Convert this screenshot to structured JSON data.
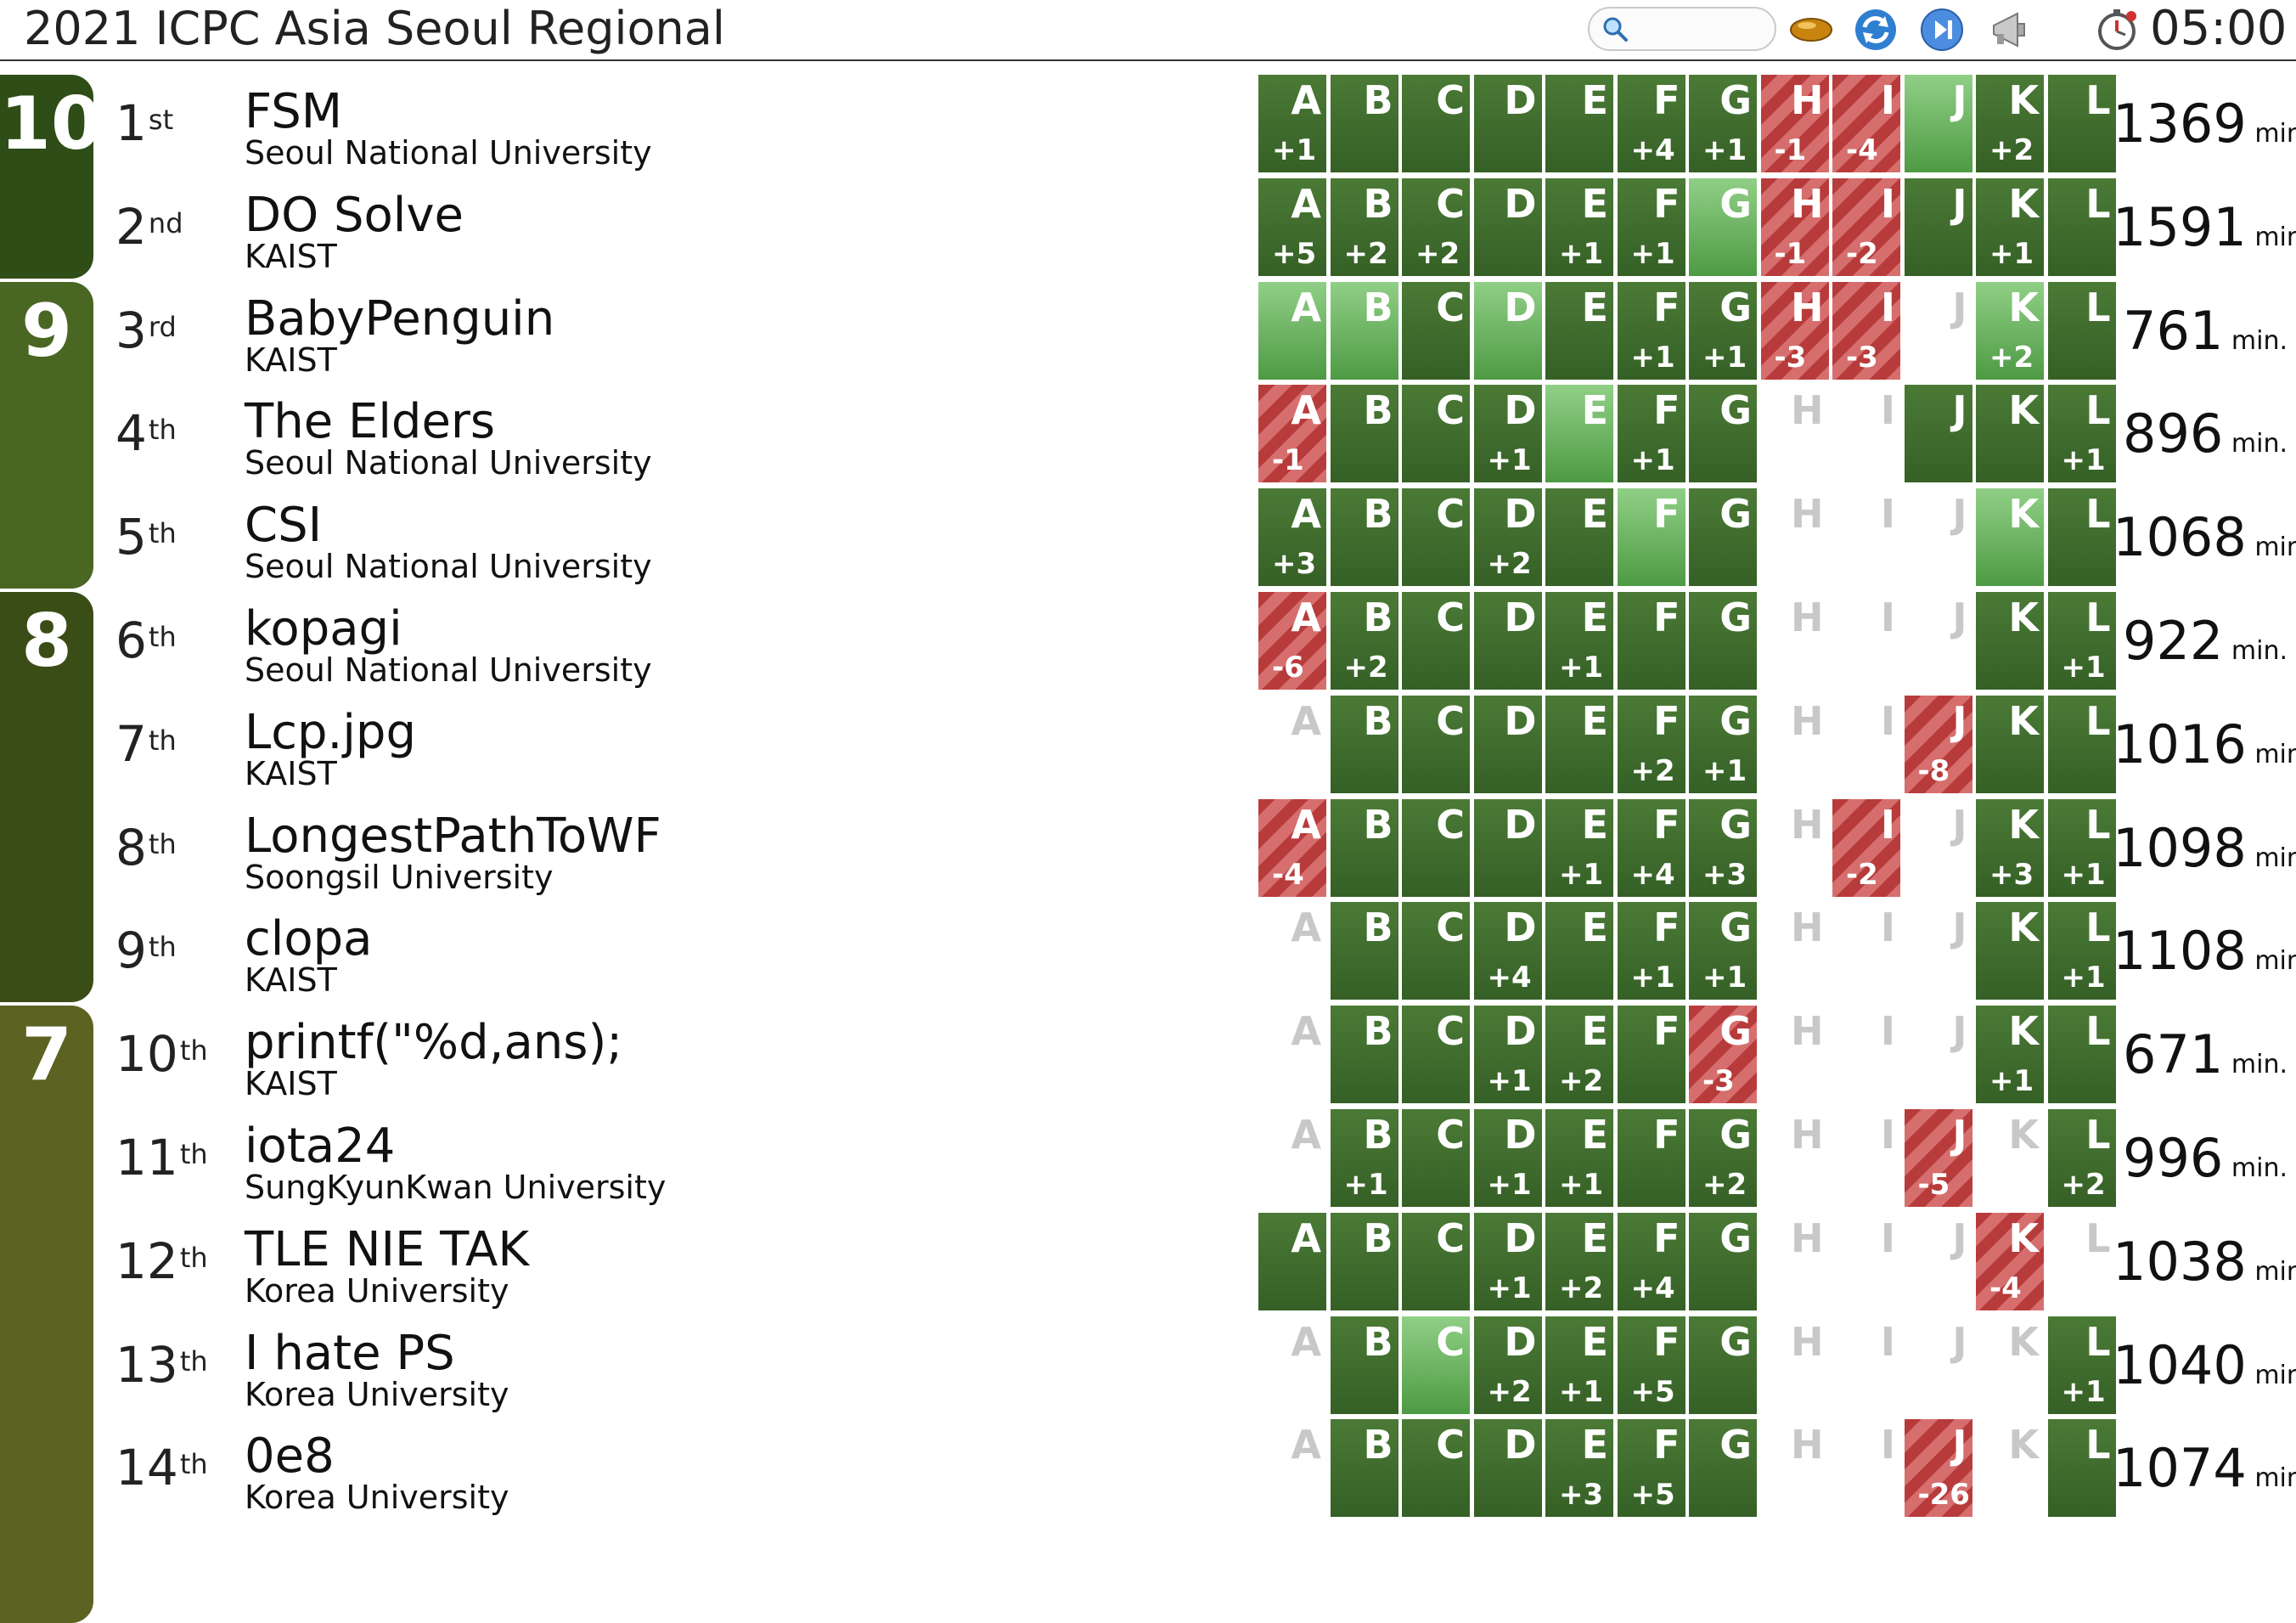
{
  "header": {
    "title": "2021 ICPC Asia Seoul Regional",
    "search_placeholder": "",
    "clock": "05:00",
    "icons": [
      "search-icon",
      "balloon-icon",
      "refresh-icon",
      "play-next-icon",
      "megaphone-icon",
      "stopwatch-icon"
    ]
  },
  "colors": {
    "solved": "#3f6b2e",
    "first_solve": "#6fb463",
    "failed": "#c04848",
    "band_10": "#2f4d17",
    "band_9": "#4a6623",
    "band_8": "#3a4d17",
    "band_7": "#5c6222"
  },
  "problems": [
    "A",
    "B",
    "C",
    "D",
    "E",
    "F",
    "G",
    "H",
    "I",
    "J",
    "K",
    "L"
  ],
  "solve_groups": [
    {
      "solved": "10",
      "first_row": 0,
      "rows": 2
    },
    {
      "solved": "9",
      "first_row": 2,
      "rows": 3
    },
    {
      "solved": "8",
      "first_row": 5,
      "rows": 4
    },
    {
      "solved": "7",
      "first_row": 9,
      "rows": 6
    }
  ],
  "standings": [
    {
      "rank": "1",
      "suffix": "st",
      "team": "FSM",
      "university": "Seoul National University",
      "penalty": "1369",
      "unit": "min.",
      "cells": [
        [
          "s",
          "+1"
        ],
        [
          "s",
          ""
        ],
        [
          "s",
          ""
        ],
        [
          "s",
          ""
        ],
        [
          "s",
          ""
        ],
        [
          "s",
          "+4"
        ],
        [
          "s",
          "+1"
        ],
        [
          "x",
          "-1"
        ],
        [
          "x",
          "-4"
        ],
        [
          "f",
          ""
        ],
        [
          "s",
          "+2"
        ],
        [
          "s",
          ""
        ]
      ]
    },
    {
      "rank": "2",
      "suffix": "nd",
      "team": "DO Solve",
      "university": "KAIST",
      "penalty": "1591",
      "unit": "min.",
      "cells": [
        [
          "s",
          "+5"
        ],
        [
          "s",
          "+2"
        ],
        [
          "s",
          "+2"
        ],
        [
          "s",
          ""
        ],
        [
          "s",
          "+1"
        ],
        [
          "s",
          "+1"
        ],
        [
          "f",
          ""
        ],
        [
          "x",
          "-1"
        ],
        [
          "x",
          "-2"
        ],
        [
          "s",
          ""
        ],
        [
          "s",
          "+1"
        ],
        [
          "s",
          ""
        ]
      ]
    },
    {
      "rank": "3",
      "suffix": "rd",
      "team": "BabyPenguin",
      "university": "KAIST",
      "penalty": "761",
      "unit": "min.",
      "cells": [
        [
          "f",
          ""
        ],
        [
          "f",
          ""
        ],
        [
          "s",
          ""
        ],
        [
          "f",
          ""
        ],
        [
          "s",
          ""
        ],
        [
          "s",
          "+1"
        ],
        [
          "s",
          "+1"
        ],
        [
          "x",
          "-3"
        ],
        [
          "x",
          "-3"
        ],
        [
          "n",
          ""
        ],
        [
          "f",
          "+2"
        ],
        [
          "s",
          ""
        ]
      ]
    },
    {
      "rank": "4",
      "suffix": "th",
      "team": "The Elders",
      "university": "Seoul National University",
      "penalty": "896",
      "unit": "min.",
      "cells": [
        [
          "x",
          "-1"
        ],
        [
          "s",
          ""
        ],
        [
          "s",
          ""
        ],
        [
          "s",
          "+1"
        ],
        [
          "f",
          ""
        ],
        [
          "s",
          "+1"
        ],
        [
          "s",
          ""
        ],
        [
          "n",
          ""
        ],
        [
          "n",
          ""
        ],
        [
          "s",
          ""
        ],
        [
          "s",
          ""
        ],
        [
          "s",
          "+1"
        ]
      ]
    },
    {
      "rank": "5",
      "suffix": "th",
      "team": "CSI",
      "university": "Seoul National University",
      "penalty": "1068",
      "unit": "min.",
      "cells": [
        [
          "s",
          "+3"
        ],
        [
          "s",
          ""
        ],
        [
          "s",
          ""
        ],
        [
          "s",
          "+2"
        ],
        [
          "s",
          ""
        ],
        [
          "f",
          ""
        ],
        [
          "s",
          ""
        ],
        [
          "n",
          ""
        ],
        [
          "n",
          ""
        ],
        [
          "n",
          ""
        ],
        [
          "f",
          ""
        ],
        [
          "s",
          ""
        ]
      ]
    },
    {
      "rank": "6",
      "suffix": "th",
      "team": "kopagi",
      "university": "Seoul National University",
      "penalty": "922",
      "unit": "min.",
      "cells": [
        [
          "x",
          "-6"
        ],
        [
          "s",
          "+2"
        ],
        [
          "s",
          ""
        ],
        [
          "s",
          ""
        ],
        [
          "s",
          "+1"
        ],
        [
          "s",
          ""
        ],
        [
          "s",
          ""
        ],
        [
          "n",
          ""
        ],
        [
          "n",
          ""
        ],
        [
          "n",
          ""
        ],
        [
          "s",
          ""
        ],
        [
          "s",
          "+1"
        ]
      ]
    },
    {
      "rank": "7",
      "suffix": "th",
      "team": "Lcp.jpg",
      "university": "KAIST",
      "penalty": "1016",
      "unit": "min.",
      "cells": [
        [
          "n",
          ""
        ],
        [
          "s",
          ""
        ],
        [
          "s",
          ""
        ],
        [
          "s",
          ""
        ],
        [
          "s",
          ""
        ],
        [
          "s",
          "+2"
        ],
        [
          "s",
          "+1"
        ],
        [
          "n",
          ""
        ],
        [
          "n",
          ""
        ],
        [
          "x",
          "-8"
        ],
        [
          "s",
          ""
        ],
        [
          "s",
          ""
        ]
      ]
    },
    {
      "rank": "8",
      "suffix": "th",
      "team": "LongestPathToWF",
      "university": "Soongsil University",
      "penalty": "1098",
      "unit": "min.",
      "cells": [
        [
          "x",
          "-4"
        ],
        [
          "s",
          ""
        ],
        [
          "s",
          ""
        ],
        [
          "s",
          ""
        ],
        [
          "s",
          "+1"
        ],
        [
          "s",
          "+4"
        ],
        [
          "s",
          "+3"
        ],
        [
          "n",
          ""
        ],
        [
          "x",
          "-2"
        ],
        [
          "n",
          ""
        ],
        [
          "s",
          "+3"
        ],
        [
          "s",
          "+1"
        ]
      ]
    },
    {
      "rank": "9",
      "suffix": "th",
      "team": "clopa",
      "university": "KAIST",
      "penalty": "1108",
      "unit": "min.",
      "cells": [
        [
          "n",
          ""
        ],
        [
          "s",
          ""
        ],
        [
          "s",
          ""
        ],
        [
          "s",
          "+4"
        ],
        [
          "s",
          ""
        ],
        [
          "s",
          "+1"
        ],
        [
          "s",
          "+1"
        ],
        [
          "n",
          ""
        ],
        [
          "n",
          ""
        ],
        [
          "n",
          ""
        ],
        [
          "s",
          ""
        ],
        [
          "s",
          "+1"
        ]
      ]
    },
    {
      "rank": "10",
      "suffix": "th",
      "team": "printf(\"%d,ans);",
      "university": "KAIST",
      "penalty": "671",
      "unit": "min.",
      "cells": [
        [
          "n",
          ""
        ],
        [
          "s",
          ""
        ],
        [
          "s",
          ""
        ],
        [
          "s",
          "+1"
        ],
        [
          "s",
          "+2"
        ],
        [
          "s",
          ""
        ],
        [
          "x",
          "-3"
        ],
        [
          "n",
          ""
        ],
        [
          "n",
          ""
        ],
        [
          "n",
          ""
        ],
        [
          "s",
          "+1"
        ],
        [
          "s",
          ""
        ]
      ]
    },
    {
      "rank": "11",
      "suffix": "th",
      "team": "iota24",
      "university": "SungKyunKwan University",
      "penalty": "996",
      "unit": "min.",
      "cells": [
        [
          "n",
          ""
        ],
        [
          "s",
          "+1"
        ],
        [
          "s",
          ""
        ],
        [
          "s",
          "+1"
        ],
        [
          "s",
          "+1"
        ],
        [
          "s",
          ""
        ],
        [
          "s",
          "+2"
        ],
        [
          "n",
          ""
        ],
        [
          "n",
          ""
        ],
        [
          "x",
          "-5"
        ],
        [
          "n",
          ""
        ],
        [
          "s",
          "+2"
        ]
      ]
    },
    {
      "rank": "12",
      "suffix": "th",
      "team": "TLE NIE TAK",
      "university": "Korea University",
      "penalty": "1038",
      "unit": "min.",
      "cells": [
        [
          "s",
          ""
        ],
        [
          "s",
          ""
        ],
        [
          "s",
          ""
        ],
        [
          "s",
          "+1"
        ],
        [
          "s",
          "+2"
        ],
        [
          "s",
          "+4"
        ],
        [
          "s",
          ""
        ],
        [
          "n",
          ""
        ],
        [
          "n",
          ""
        ],
        [
          "n",
          ""
        ],
        [
          "x",
          "-4"
        ],
        [
          "n",
          ""
        ]
      ]
    },
    {
      "rank": "13",
      "suffix": "th",
      "team": "I hate PS",
      "university": "Korea University",
      "penalty": "1040",
      "unit": "min.",
      "cells": [
        [
          "n",
          ""
        ],
        [
          "s",
          ""
        ],
        [
          "f",
          ""
        ],
        [
          "s",
          "+2"
        ],
        [
          "s",
          "+1"
        ],
        [
          "s",
          "+5"
        ],
        [
          "s",
          ""
        ],
        [
          "n",
          ""
        ],
        [
          "n",
          ""
        ],
        [
          "n",
          ""
        ],
        [
          "n",
          ""
        ],
        [
          "s",
          "+1"
        ]
      ]
    },
    {
      "rank": "14",
      "suffix": "th",
      "team": "0e8",
      "university": "Korea University",
      "penalty": "1074",
      "unit": "min.",
      "cells": [
        [
          "n",
          ""
        ],
        [
          "s",
          ""
        ],
        [
          "s",
          ""
        ],
        [
          "s",
          ""
        ],
        [
          "s",
          "+3"
        ],
        [
          "s",
          "+5"
        ],
        [
          "s",
          ""
        ],
        [
          "n",
          ""
        ],
        [
          "n",
          ""
        ],
        [
          "x",
          "-26"
        ],
        [
          "n",
          ""
        ],
        [
          "s",
          ""
        ]
      ]
    }
  ]
}
